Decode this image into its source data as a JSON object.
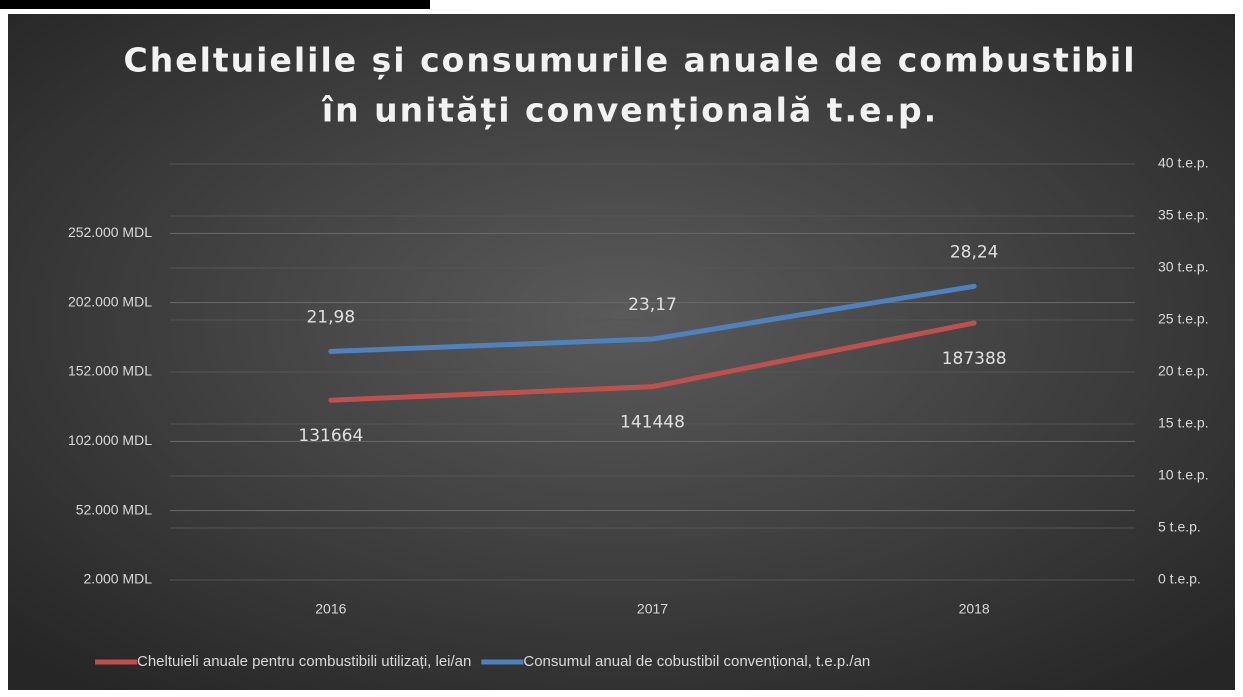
{
  "chart_data": {
    "type": "line",
    "title": [
      "Cheltuielile și consumurile anuale de combustibil",
      "în unități convențională t.e.p."
    ],
    "categories": [
      "2016",
      "2017",
      "2018"
    ],
    "series": [
      {
        "name": "Cheltuieli anuale pentru combustibili utilizați, lei/an",
        "color": "#c0504d",
        "values": [
          131664,
          141448,
          187388
        ]
      },
      {
        "name": "Consumul anual de cobustibil convențional, t.e.p./an",
        "color": "#4f81bd",
        "axis": "y2",
        "values": [
          21.98,
          23.17,
          28.24
        ],
        "value_labels": [
          "21,98",
          "23,17",
          "28,24"
        ]
      }
    ],
    "ylim": [
      2000,
      302000
    ],
    "yticks": [
      {
        "value": 2000,
        "label": "2.000 MDL"
      },
      {
        "value": 52000,
        "label": "52.000 MDL"
      },
      {
        "value": 102000,
        "label": "102.000 MDL"
      },
      {
        "value": 152000,
        "label": "152.000 MDL"
      },
      {
        "value": 202000,
        "label": "202.000 MDL"
      },
      {
        "value": 252000,
        "label": "252.000 MDL"
      }
    ],
    "y2lim": [
      0,
      40
    ],
    "y2ticks": [
      {
        "value": 0,
        "label": "0 t.e.p."
      },
      {
        "value": 5,
        "label": "5 t.e.p."
      },
      {
        "value": 10,
        "label": "10 t.e.p."
      },
      {
        "value": 15,
        "label": "15 t.e.p."
      },
      {
        "value": 20,
        "label": "20 t.e.p."
      },
      {
        "value": 25,
        "label": "25 t.e.p."
      },
      {
        "value": 30,
        "label": "30 t.e.p."
      },
      {
        "value": 35,
        "label": "35 t.e.p."
      },
      {
        "value": 40,
        "label": "40 t.e.p."
      }
    ],
    "grid": true,
    "legend": "bottom"
  }
}
